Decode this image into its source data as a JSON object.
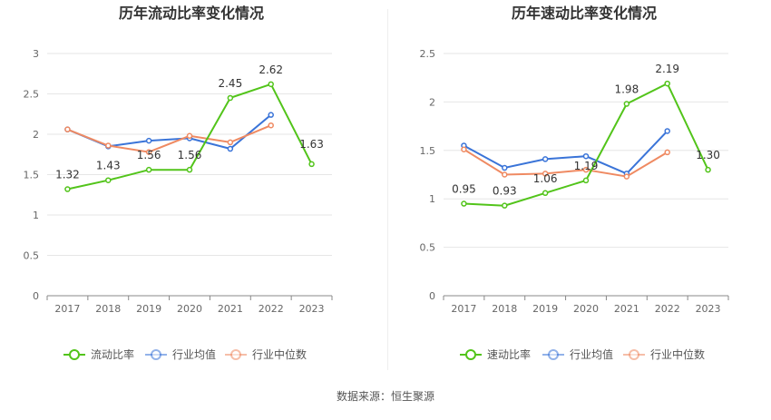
{
  "chart_data": [
    {
      "type": "line",
      "title": "历年流动比率变化情况",
      "categories": [
        "2017",
        "2018",
        "2019",
        "2020",
        "2021",
        "2022",
        "2023"
      ],
      "ylim": [
        0,
        3
      ],
      "yticks": [
        "0",
        "0.5",
        "1",
        "1.5",
        "2",
        "2.5",
        "3"
      ],
      "ytick_values": [
        0,
        0.5,
        1,
        1.5,
        2,
        2.5,
        3
      ],
      "grid": true,
      "legend_position": "bottom",
      "series": [
        {
          "name": "流动比率",
          "color": "#52c41a",
          "values": [
            1.32,
            1.43,
            1.56,
            1.56,
            2.45,
            2.62,
            1.63
          ],
          "labels": [
            "1.32",
            "1.43",
            "1.56",
            "1.56",
            "2.45",
            "2.62",
            "1.63"
          ]
        },
        {
          "name": "行业均值",
          "color": "#3a74d8",
          "values": [
            2.06,
            1.85,
            1.92,
            1.95,
            1.82,
            2.24,
            null
          ]
        },
        {
          "name": "行业中位数",
          "color": "#ef8a62",
          "values": [
            2.06,
            1.86,
            1.78,
            1.98,
            1.9,
            2.11,
            null
          ]
        }
      ]
    },
    {
      "type": "line",
      "title": "历年速动比率变化情况",
      "categories": [
        "2017",
        "2018",
        "2019",
        "2020",
        "2021",
        "2022",
        "2023"
      ],
      "ylim": [
        0,
        2.5
      ],
      "yticks": [
        "0",
        "0.5",
        "1",
        "1.5",
        "2",
        "2.5"
      ],
      "ytick_values": [
        0,
        0.5,
        1,
        1.5,
        2,
        2.5
      ],
      "grid": true,
      "legend_position": "bottom",
      "series": [
        {
          "name": "速动比率",
          "color": "#52c41a",
          "values": [
            0.95,
            0.93,
            1.06,
            1.19,
            1.98,
            2.19,
            1.3
          ],
          "labels": [
            "0.95",
            "0.93",
            "1.06",
            "1.19",
            "1.98",
            "2.19",
            "1.30"
          ]
        },
        {
          "name": "行业均值",
          "color": "#3a74d8",
          "values": [
            1.55,
            1.32,
            1.41,
            1.44,
            1.26,
            1.7,
            null
          ]
        },
        {
          "name": "行业中位数",
          "color": "#ef8a62",
          "values": [
            1.51,
            1.25,
            1.26,
            1.3,
            1.23,
            1.48,
            null
          ]
        }
      ]
    }
  ],
  "footer": {
    "source": "数据来源：恒生聚源"
  }
}
